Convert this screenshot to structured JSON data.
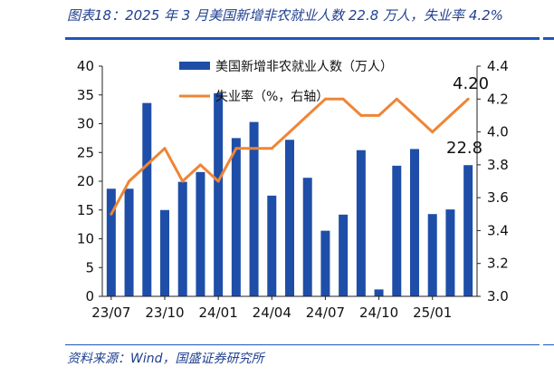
{
  "header": {
    "title": "图表18：2025 年 3 月美国新增非农就业人数 22.8 万人，失业率 4.2%"
  },
  "footer": {
    "source": "资料来源：Wind，国盛证券研究所"
  },
  "chart_data": {
    "type": "bar",
    "x": [
      "23/07",
      "23/08",
      "23/09",
      "23/10",
      "23/11",
      "23/12",
      "24/01",
      "24/02",
      "24/03",
      "24/04",
      "24/05",
      "24/06",
      "24/07",
      "24/08",
      "24/09",
      "24/10",
      "24/11",
      "24/12",
      "25/01",
      "25/02",
      "25/03"
    ],
    "x_tick_labels": [
      "23/07",
      "23/10",
      "24/01",
      "24/04",
      "24/07",
      "24/10",
      "25/01"
    ],
    "series": [
      {
        "name": "美国新增非农就业人数（万人）",
        "type": "bar",
        "axis": "left",
        "color": "#1f4ea8",
        "values": [
          18.7,
          18.7,
          33.6,
          15.0,
          19.9,
          21.6,
          35.3,
          27.5,
          30.3,
          17.5,
          27.2,
          20.6,
          11.4,
          14.2,
          25.4,
          1.2,
          22.7,
          25.6,
          14.3,
          15.1,
          22.8
        ]
      },
      {
        "name": "失业率（%，右轴）",
        "type": "line",
        "axis": "right",
        "color": "#ef8536",
        "values": [
          3.5,
          3.7,
          3.8,
          3.9,
          3.7,
          3.8,
          3.7,
          3.9,
          3.9,
          3.9,
          4.0,
          4.1,
          4.2,
          4.2,
          4.1,
          4.1,
          4.2,
          4.1,
          4.0,
          4.1,
          4.2
        ]
      }
    ],
    "y_left": {
      "min": 0,
      "max": 40,
      "ticks": [
        "0",
        "5",
        "10",
        "15",
        "20",
        "25",
        "30",
        "35",
        "40"
      ]
    },
    "y_right": {
      "min": 3.0,
      "max": 4.4,
      "ticks": [
        "3.0",
        "3.2",
        "3.4",
        "3.6",
        "3.8",
        "4.0",
        "4.2",
        "4.4"
      ]
    },
    "annotations": {
      "last_bar_label": "22.8",
      "last_line_label": "4.20"
    },
    "grid": false,
    "legend_position": "top"
  }
}
